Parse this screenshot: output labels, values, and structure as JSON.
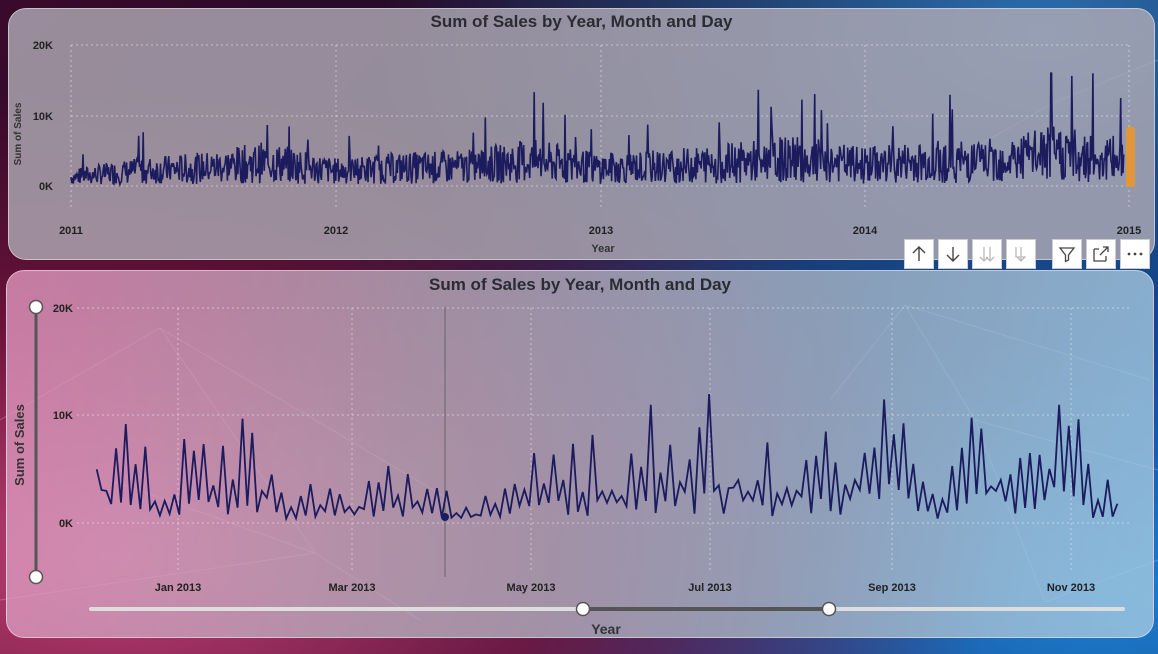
{
  "top_chart": {
    "title": "Sum of Sales by Year, Month and Day",
    "y_axis_label": "Sum of Sales",
    "x_axis_label": "Year",
    "y_ticks": [
      "20K",
      "10K",
      "0K"
    ],
    "x_ticks": [
      "2011",
      "2012",
      "2013",
      "2014",
      "2015"
    ],
    "line_color": "#1b1b5e",
    "highlight_color": "#e8962c"
  },
  "bottom_chart": {
    "title": "Sum of Sales by Year, Month and Day",
    "y_axis_label": "Sum of Sales",
    "x_axis_label": "Year",
    "y_ticks": [
      "20K",
      "10K",
      "0K"
    ],
    "x_ticks": [
      "Jan 2013",
      "Mar 2013",
      "May 2013",
      "Jul 2013",
      "Sep 2013",
      "Nov 2013"
    ],
    "line_color": "#1b1b5e"
  },
  "toolbar": {
    "icons": [
      "arrow-up-icon",
      "arrow-down-icon",
      "double-arrow-down-icon",
      "expand-hierarchy-icon",
      "filter-icon",
      "focus-mode-icon",
      "more-options-icon"
    ]
  },
  "chart_data": [
    {
      "type": "line",
      "title": "Sum of Sales by Year, Month and Day",
      "xlabel": "Year",
      "ylabel": "Sum of Sales",
      "ylim": [
        0,
        20000
      ],
      "x_range": [
        "2011-01-01",
        "2014-12-31"
      ],
      "series": [
        {
          "x": [
            "2011-01",
            "2011-04",
            "2011-07",
            "2011-10",
            "2012-01",
            "2012-04",
            "2012-07",
            "2012-10",
            "2013-01",
            "2013-04",
            "2013-07",
            "2013-10",
            "2014-01",
            "2014-04",
            "2014-07",
            "2014-10",
            "2014-12"
          ],
          "values": [
            1500,
            2500,
            3000,
            4000,
            2500,
            3000,
            3200,
            4200,
            3000,
            3200,
            3800,
            4500,
            3500,
            4000,
            4200,
            5500,
            4500
          ]
        }
      ]
    },
    {
      "type": "line",
      "title": "Sum of Sales by Year, Month and Day",
      "xlabel": "Year",
      "ylabel": "Sum of Sales",
      "ylim": [
        0,
        20000
      ],
      "x_range": [
        "2012-12-01",
        "2013-11-30"
      ],
      "series": [
        {
          "x": [
            "2012-12-05",
            "2012-12-15",
            "2012-12-25",
            "2013-01-05",
            "2013-01-15",
            "2013-01-25",
            "2013-02-05",
            "2013-02-15",
            "2013-02-25",
            "2013-03-05",
            "2013-03-15",
            "2013-03-25",
            "2013-04-05",
            "2013-04-15",
            "2013-04-25",
            "2013-05-05",
            "2013-05-15",
            "2013-05-25",
            "2013-06-05",
            "2013-06-15",
            "2013-06-25",
            "2013-07-05",
            "2013-07-15",
            "2013-07-25",
            "2013-08-05",
            "2013-08-15",
            "2013-08-25",
            "2013-09-05",
            "2013-09-15",
            "2013-09-25",
            "2013-10-05",
            "2013-10-15",
            "2013-10-25",
            "2013-11-05",
            "2013-11-15",
            "2013-11-25"
          ],
          "values": [
            5000,
            9200,
            2000,
            7800,
            3500,
            9700,
            4500,
            2500,
            3200,
            1500,
            5300,
            2000,
            3000,
            800,
            3200,
            6500,
            4000,
            8200,
            2500,
            11000,
            3800,
            12000,
            4000,
            7500,
            3000,
            8500,
            4000,
            11500,
            5500,
            2200,
            9800,
            4000,
            6500,
            11000,
            5500,
            1800
          ]
        }
      ]
    }
  ]
}
